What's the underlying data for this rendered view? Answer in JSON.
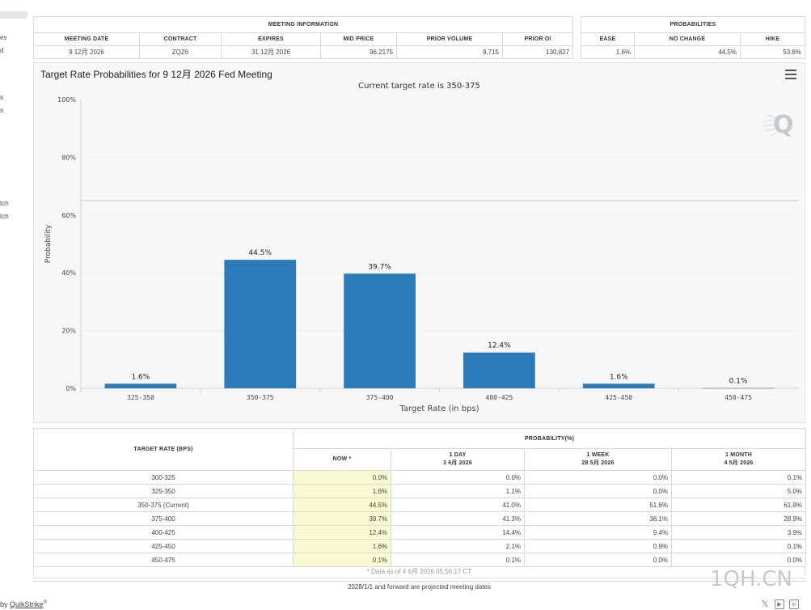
{
  "sidebar": {
    "fragments": [
      "es",
      "d",
      "s",
      "s",
      "tch",
      "tch"
    ]
  },
  "meeting_info": {
    "title": "MEETING INFORMATION",
    "headers": [
      "MEETING DATE",
      "CONTRACT",
      "EXPIRES",
      "MID PRICE",
      "PRIOR VOLUME",
      "PRIOR OI"
    ],
    "row": [
      "9 12月 2026",
      "ZQZ6",
      "31 12月 2026",
      "96.2175",
      "9,715",
      "130,827"
    ]
  },
  "probabilities": {
    "title": "PROBABILITIES",
    "headers": [
      "EASE",
      "NO CHANGE",
      "HIKE"
    ],
    "row": [
      "1.6%",
      "44.5%",
      "53.8%"
    ]
  },
  "chart": {
    "title": "Target Rate Probabilities for 9 12月 2026 Fed Meeting",
    "subtitle": "Current target rate is 350-375",
    "menu_icon": "hamburger-menu-icon",
    "bar_color": "#2b7bb9"
  },
  "chart_data": {
    "type": "bar",
    "categories": [
      "325-350",
      "350-375",
      "375-400",
      "400-425",
      "425-450",
      "450-475"
    ],
    "values": [
      1.6,
      44.5,
      39.7,
      12.4,
      1.6,
      0.1
    ],
    "data_labels": [
      "1.6%",
      "44.5%",
      "39.7%",
      "12.4%",
      "1.6%",
      "0.1%"
    ],
    "xlabel": "Target Rate (in bps)",
    "ylabel": "Probability",
    "ylim": [
      0,
      100
    ],
    "yticks": [
      0,
      20,
      40,
      60,
      80,
      100
    ],
    "ytick_labels": [
      "0%",
      "20%",
      "40%",
      "60%",
      "80%",
      "100%"
    ],
    "reference_line": 65,
    "grid": true
  },
  "prob_table": {
    "col_target": "TARGET RATE (BPS)",
    "group_head": "PROBABILITY(%)",
    "col_now": "NOW *",
    "col_1day": "1 DAY",
    "col_1day_date": "3 6月 2026",
    "col_1week": "1 WEEK",
    "col_1week_date": "28 5月 2026",
    "col_1month": "1 MONTH",
    "col_1month_date": "4 5月 2026",
    "rows": [
      [
        "300-325",
        "0.0%",
        "0.0%",
        "0.0%",
        "0.1%"
      ],
      [
        "325-350",
        "1.6%",
        "1.1%",
        "0.0%",
        "5.0%"
      ],
      [
        "350-375 (Current)",
        "44.5%",
        "41.0%",
        "51.6%",
        "61.9%"
      ],
      [
        "375-400",
        "39.7%",
        "41.3%",
        "38.1%",
        "28.9%"
      ],
      [
        "400-425",
        "12.4%",
        "14.4%",
        "9.4%",
        "3.9%"
      ],
      [
        "425-450",
        "1.6%",
        "2.1%",
        "0.9%",
        "0.1%"
      ],
      [
        "450-475",
        "0.1%",
        "0.1%",
        "0.0%",
        "0.0%"
      ]
    ],
    "now_color": "#fafad2"
  },
  "footnote": "* Data as of 4 6月 2026 05:56:17 CT",
  "projected_note": "2028/1/1 and forward are projected meeting dates",
  "powered_prefix": "by ",
  "powered_link": "QuikStrike",
  "powered_sup": "®",
  "watermark": "1QH.CN",
  "social_icons": [
    "x-icon",
    "youtube-icon",
    "linkedin-icon"
  ]
}
